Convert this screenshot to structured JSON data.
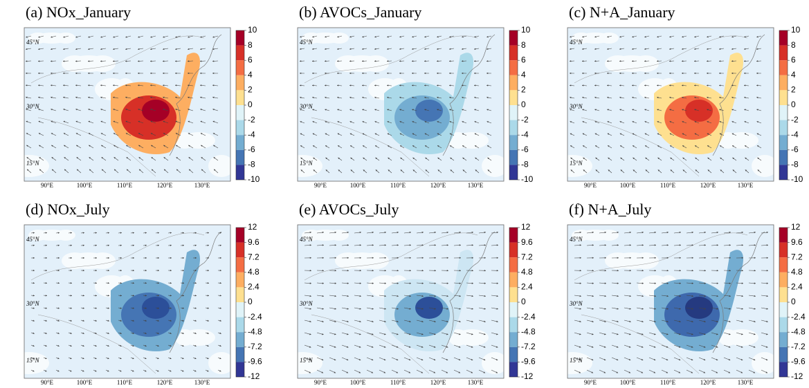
{
  "panels": [
    {
      "title": "(a) NOx_January",
      "colorbar_ticks": [
        10,
        8,
        6,
        4,
        2,
        0,
        -2,
        -4,
        -6,
        -8,
        -10
      ],
      "lat_labels": [
        "45°N",
        "30°N",
        "15°N"
      ],
      "lon_labels": [
        "90°E",
        "100°E",
        "110°E",
        "120°E",
        "130°E"
      ]
    },
    {
      "title": "(b) AVOCs_January",
      "colorbar_ticks": [
        10,
        8,
        6,
        4,
        2,
        0,
        -2,
        -4,
        -6,
        -8,
        -10
      ],
      "lat_labels": [
        "45°N",
        "30°N",
        "15°N"
      ],
      "lon_labels": [
        "90°E",
        "100°E",
        "110°E",
        "120°E",
        "130°E"
      ]
    },
    {
      "title": "(c) N+A_January",
      "colorbar_ticks": [
        10,
        8,
        6,
        4,
        2,
        0,
        -2,
        -4,
        -6,
        -8,
        -10
      ],
      "lat_labels": [
        "45°N",
        "30°N",
        "15°N"
      ],
      "lon_labels": [
        "90°E",
        "100°E",
        "110°E",
        "120°E",
        "130°E"
      ]
    },
    {
      "title": "(d) NOx_July",
      "colorbar_ticks": [
        12,
        9.6,
        7.2,
        4.8,
        2.4,
        0,
        -2.4,
        -4.8,
        -7.2,
        -9.6,
        -12
      ],
      "lat_labels": [
        "45°N",
        "30°N",
        "15°N"
      ],
      "lon_labels": [
        "90°E",
        "100°E",
        "110°E",
        "120°E",
        "130°E"
      ]
    },
    {
      "title": "(e) AVOCs_July",
      "colorbar_ticks": [
        12,
        9.6,
        7.2,
        4.8,
        2.4,
        0,
        -2.4,
        -4.8,
        -7.2,
        -9.6,
        -12
      ],
      "lat_labels": [
        "45°N",
        "30°N",
        "15°N"
      ],
      "lon_labels": [
        "90°E",
        "100°E",
        "110°E",
        "120°E",
        "130°E"
      ]
    },
    {
      "title": "(f) N+A_July",
      "colorbar_ticks": [
        12,
        9.6,
        7.2,
        4.8,
        2.4,
        0,
        -2.4,
        -4.8,
        -7.2,
        -9.6,
        -12
      ],
      "lat_labels": [
        "45°N",
        "30°N",
        "15°N"
      ],
      "lon_labels": [
        "90°E",
        "100°E",
        "110°E",
        "120°E",
        "130°E"
      ]
    }
  ]
}
